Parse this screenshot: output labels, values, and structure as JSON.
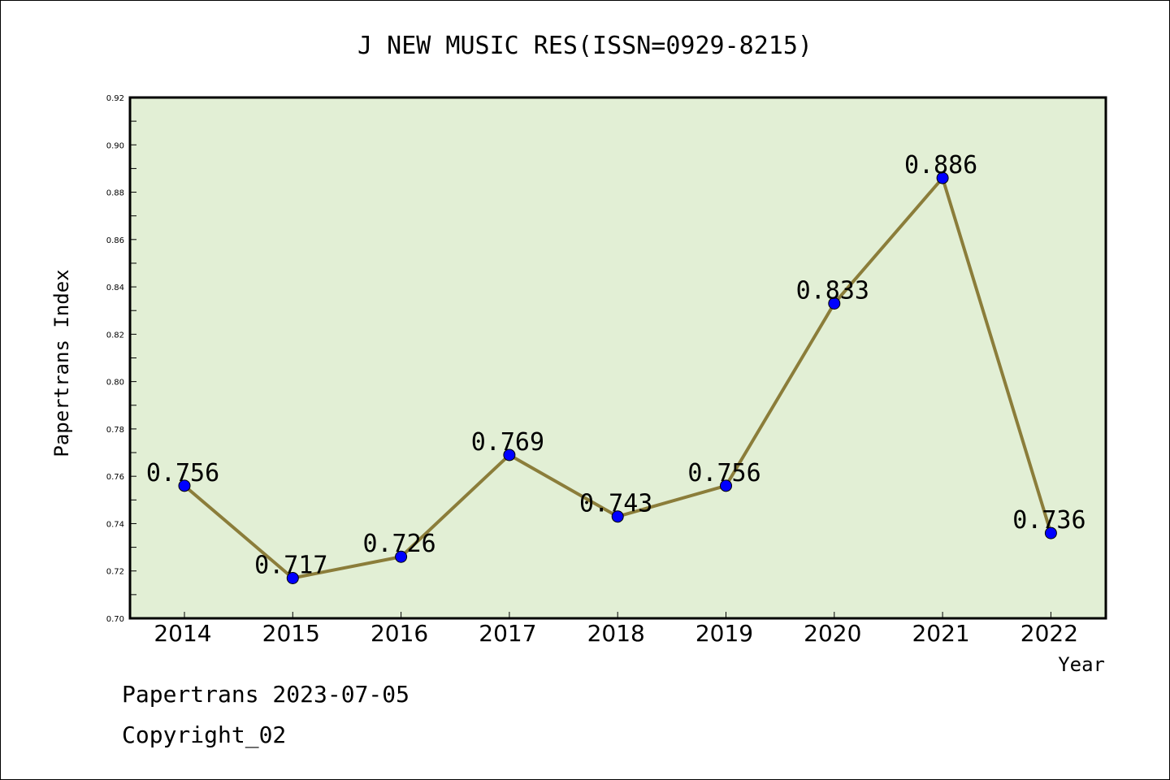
{
  "chart_data": {
    "type": "line",
    "title": "J NEW MUSIC RES(ISSN=0929-8215)",
    "xlabel": "Year",
    "ylabel": "Papertrans Index",
    "categories": [
      "2014",
      "2015",
      "2016",
      "2017",
      "2018",
      "2019",
      "2020",
      "2021",
      "2022"
    ],
    "series": [
      {
        "values": [
          0.756,
          0.717,
          0.726,
          0.769,
          0.743,
          0.756,
          0.833,
          0.886,
          0.736
        ]
      }
    ],
    "data_labels": [
      "0.756",
      "0.717",
      "0.726",
      "0.769",
      "0.743",
      "0.756",
      "0.833",
      "0.886",
      "0.736"
    ],
    "ylim": [
      0.7,
      0.92
    ],
    "yticks": [
      "0.70",
      "0.72",
      "0.74",
      "0.76",
      "0.78",
      "0.80",
      "0.82",
      "0.84",
      "0.86",
      "0.88",
      "0.90",
      "0.92"
    ],
    "grid": false,
    "legend": "none",
    "colors": {
      "plot_background": "#e2efd5",
      "line": "#8b7d3a",
      "marker": "#0000ff"
    }
  },
  "footer": {
    "line1": "Papertrans 2023-07-05",
    "line2": "Copyright_02"
  }
}
